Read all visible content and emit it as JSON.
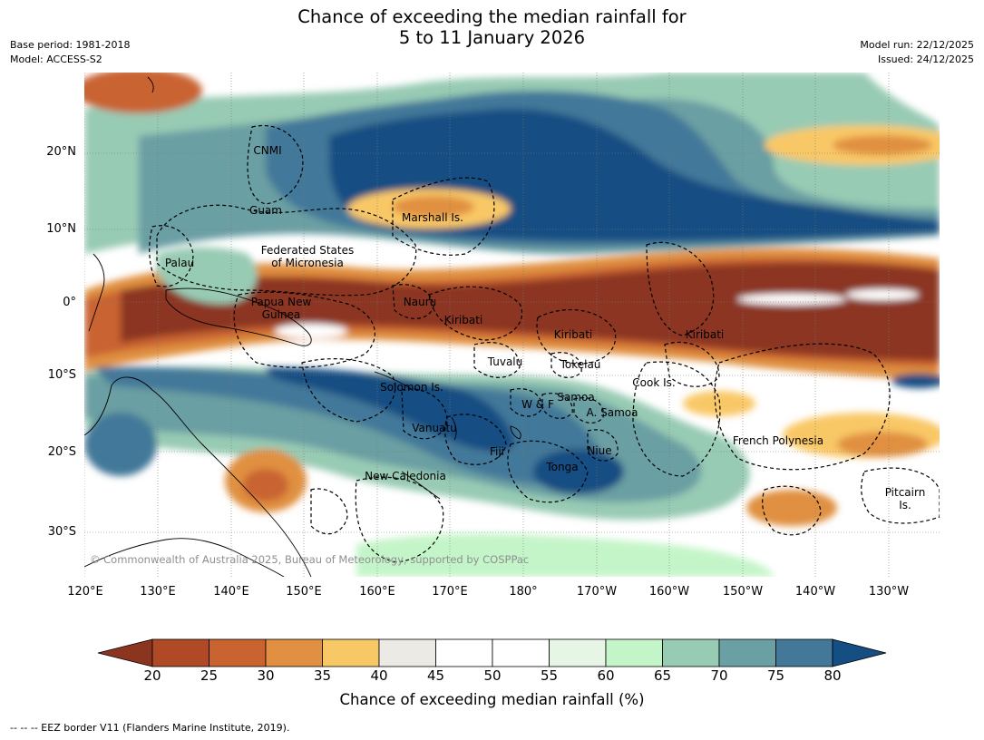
{
  "header": {
    "title_line1": "Chance of exceeding the median rainfall for",
    "title_line2": "5 to 11 January 2026",
    "base_period": "Base period: 1981-2018",
    "model": "Model: ACCESS-S2",
    "model_run": "Model run: 22/12/2025",
    "issued": "Issued: 24/12/2025"
  },
  "map": {
    "lat_labels": [
      "20°N",
      "10°N",
      "0°",
      "10°S",
      "20°S",
      "30°S"
    ],
    "lon_labels": [
      "120°E",
      "130°E",
      "140°E",
      "150°E",
      "160°E",
      "170°E",
      "180°",
      "170°W",
      "160°W",
      "150°W",
      "140°W",
      "130°W"
    ],
    "regions": {
      "cnmi": "CNMI",
      "guam": "Guam",
      "marshall": "Marshall Is.",
      "fsm_1": "Federated States",
      "fsm_2": "of Micronesia",
      "palau": "Palau",
      "png_1": "Papua New",
      "png_2": "Guinea",
      "nauru": "Nauru",
      "kiribati_w": "Kiribati",
      "kiribati_c": "Kiribati",
      "kiribati_e": "Kiribati",
      "tuvalu": "Tuvalu",
      "tokelau": "Tokelau",
      "cook": "Cook Is.",
      "solomon": "Solomon Is.",
      "wf": "W & F",
      "samoa": "Samoa",
      "asamoa": "A. Samoa",
      "vanuatu": "Vanuatu",
      "fiji": "Fiji",
      "niue": "Niue",
      "tonga": "Tonga",
      "french_polynesia": "French Polynesia",
      "new_caledonia": "New Caledonia",
      "pitcairn_1": "Pitcairn",
      "pitcairn_2": "Is."
    },
    "copyright": "© Commonwealth of Australia 2025, Bureau of Meteorology, supported by COSPPac"
  },
  "colorbar": {
    "ticks": [
      "20",
      "25",
      "30",
      "35",
      "40",
      "45",
      "50",
      "55",
      "60",
      "65",
      "70",
      "75",
      "80"
    ],
    "colors": [
      "#8b3520",
      "#b04a26",
      "#c96430",
      "#e09040",
      "#f9c866",
      "#eceae4",
      "#ffffff",
      "#ffffff",
      "#e6f5e6",
      "#c4f5c8",
      "#98cbb4",
      "#6a9fa3",
      "#437899",
      "#154e82"
    ],
    "label": "Chance of exceeding median rainfall (%)"
  },
  "footnote": "-- -- -- EEZ border V11 (Flanders Marine Institute, 2019)."
}
